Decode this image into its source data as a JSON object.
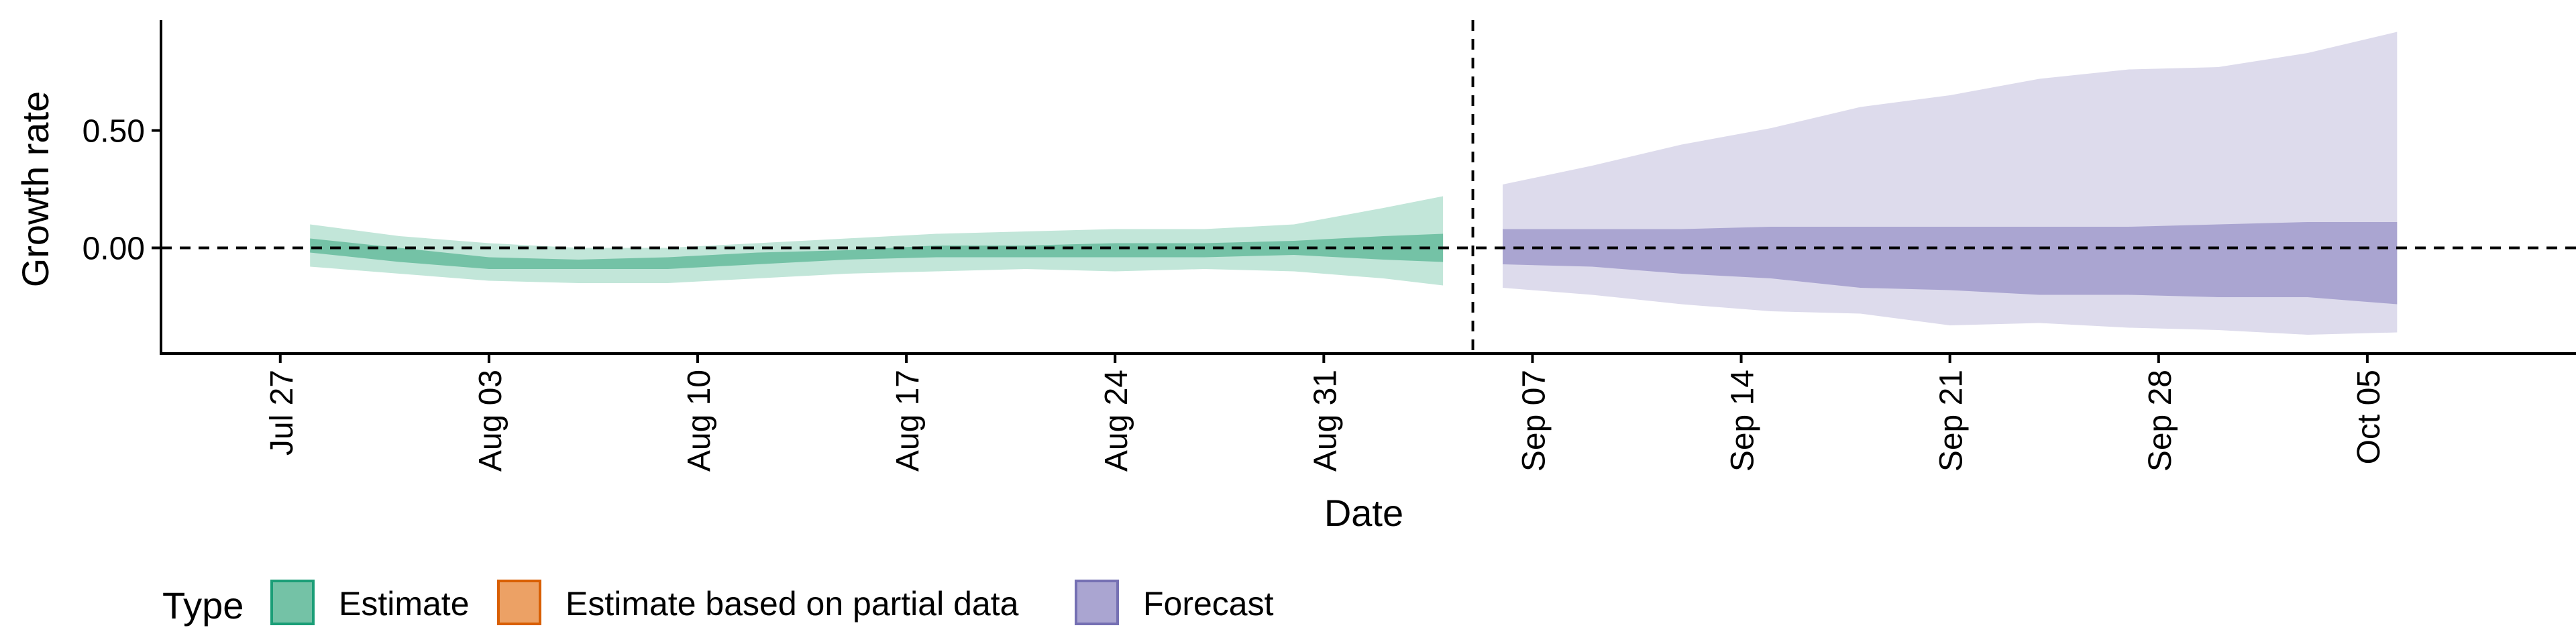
{
  "chart_data": {
    "type": "area",
    "title": "",
    "xlabel": "Date",
    "ylabel": "Growth rate",
    "x_tick_labels": [
      "Jul 27",
      "Aug 03",
      "Aug 10",
      "Aug 17",
      "Aug 24",
      "Aug 31",
      "Sep 07",
      "Sep 14",
      "Sep 21",
      "Sep 28",
      "Oct 05"
    ],
    "y_tick_labels": [
      "0.00",
      "0.50"
    ],
    "y_ticks": [
      0.0,
      0.5
    ],
    "ylim": [
      -0.45,
      0.97
    ],
    "xlim": [
      "2020-07-23",
      "2020-10-12"
    ],
    "reference_lines": {
      "horizontal_y": 0.0,
      "vertical_x": "2020-09-05"
    },
    "legend": {
      "title": "Type",
      "position": "bottom-left",
      "items": [
        {
          "label": "Estimate",
          "fill": "#74c2a6",
          "stroke": "#1b9e77"
        },
        {
          "label": "Estimate based on partial data",
          "fill": "#eca165",
          "stroke": "#d95f02"
        },
        {
          "label": "Forecast",
          "fill": "#aaa5d1",
          "stroke": "#7570b3"
        }
      ]
    },
    "series": [
      {
        "name": "Estimate",
        "outer_color": "#c2e6d9",
        "inner_color": "#74c2a6",
        "x_start": "2020-07-28",
        "x_end": "2020-09-04",
        "points": [
          {
            "x": "2020-07-28",
            "lower90": -0.08,
            "upper90": 0.1,
            "lower50": -0.02,
            "upper50": 0.04
          },
          {
            "x": "2020-07-31",
            "lower90": -0.11,
            "upper90": 0.05,
            "lower50": -0.06,
            "upper50": 0.0
          },
          {
            "x": "2020-08-03",
            "lower90": -0.14,
            "upper90": 0.02,
            "lower50": -0.09,
            "upper50": -0.04
          },
          {
            "x": "2020-08-06",
            "lower90": -0.15,
            "upper90": 0.0,
            "lower50": -0.09,
            "upper50": -0.05
          },
          {
            "x": "2020-08-09",
            "lower90": -0.15,
            "upper90": 0.0,
            "lower50": -0.09,
            "upper50": -0.04
          },
          {
            "x": "2020-08-12",
            "lower90": -0.13,
            "upper90": 0.02,
            "lower50": -0.07,
            "upper50": -0.02
          },
          {
            "x": "2020-08-15",
            "lower90": -0.11,
            "upper90": 0.04,
            "lower50": -0.05,
            "upper50": -0.01
          },
          {
            "x": "2020-08-18",
            "lower90": -0.1,
            "upper90": 0.06,
            "lower50": -0.04,
            "upper50": 0.01
          },
          {
            "x": "2020-08-21",
            "lower90": -0.09,
            "upper90": 0.07,
            "lower50": -0.04,
            "upper50": 0.01
          },
          {
            "x": "2020-08-24",
            "lower90": -0.1,
            "upper90": 0.08,
            "lower50": -0.04,
            "upper50": 0.02
          },
          {
            "x": "2020-08-27",
            "lower90": -0.09,
            "upper90": 0.08,
            "lower50": -0.04,
            "upper50": 0.02
          },
          {
            "x": "2020-08-30",
            "lower90": -0.1,
            "upper90": 0.1,
            "lower50": -0.03,
            "upper50": 0.03
          },
          {
            "x": "2020-09-02",
            "lower90": -0.13,
            "upper90": 0.17,
            "lower50": -0.05,
            "upper50": 0.05
          },
          {
            "x": "2020-09-04",
            "lower90": -0.16,
            "upper90": 0.22,
            "lower50": -0.06,
            "upper50": 0.06
          }
        ]
      },
      {
        "name": "Forecast",
        "outer_color": "#dddbec",
        "inner_color": "#aaa5d1",
        "x_start": "2020-09-06",
        "x_end": "2020-10-06",
        "points": [
          {
            "x": "2020-09-06",
            "lower90": -0.17,
            "upper90": 0.27,
            "lower50": -0.07,
            "upper50": 0.08
          },
          {
            "x": "2020-09-09",
            "lower90": -0.2,
            "upper90": 0.35,
            "lower50": -0.08,
            "upper50": 0.08
          },
          {
            "x": "2020-09-12",
            "lower90": -0.24,
            "upper90": 0.44,
            "lower50": -0.11,
            "upper50": 0.08
          },
          {
            "x": "2020-09-15",
            "lower90": -0.27,
            "upper90": 0.51,
            "lower50": -0.13,
            "upper50": 0.09
          },
          {
            "x": "2020-09-18",
            "lower90": -0.28,
            "upper90": 0.6,
            "lower50": -0.17,
            "upper50": 0.09
          },
          {
            "x": "2020-09-21",
            "lower90": -0.33,
            "upper90": 0.65,
            "lower50": -0.18,
            "upper50": 0.09
          },
          {
            "x": "2020-09-24",
            "lower90": -0.32,
            "upper90": 0.72,
            "lower50": -0.2,
            "upper50": 0.09
          },
          {
            "x": "2020-09-27",
            "lower90": -0.34,
            "upper90": 0.76,
            "lower50": -0.2,
            "upper50": 0.09
          },
          {
            "x": "2020-09-30",
            "lower90": -0.35,
            "upper90": 0.77,
            "lower50": -0.21,
            "upper50": 0.1
          },
          {
            "x": "2020-10-03",
            "lower90": -0.37,
            "upper90": 0.83,
            "lower50": -0.21,
            "upper50": 0.11
          },
          {
            "x": "2020-10-06",
            "lower90": -0.36,
            "upper90": 0.92,
            "lower50": -0.24,
            "upper50": 0.11
          }
        ]
      }
    ]
  }
}
